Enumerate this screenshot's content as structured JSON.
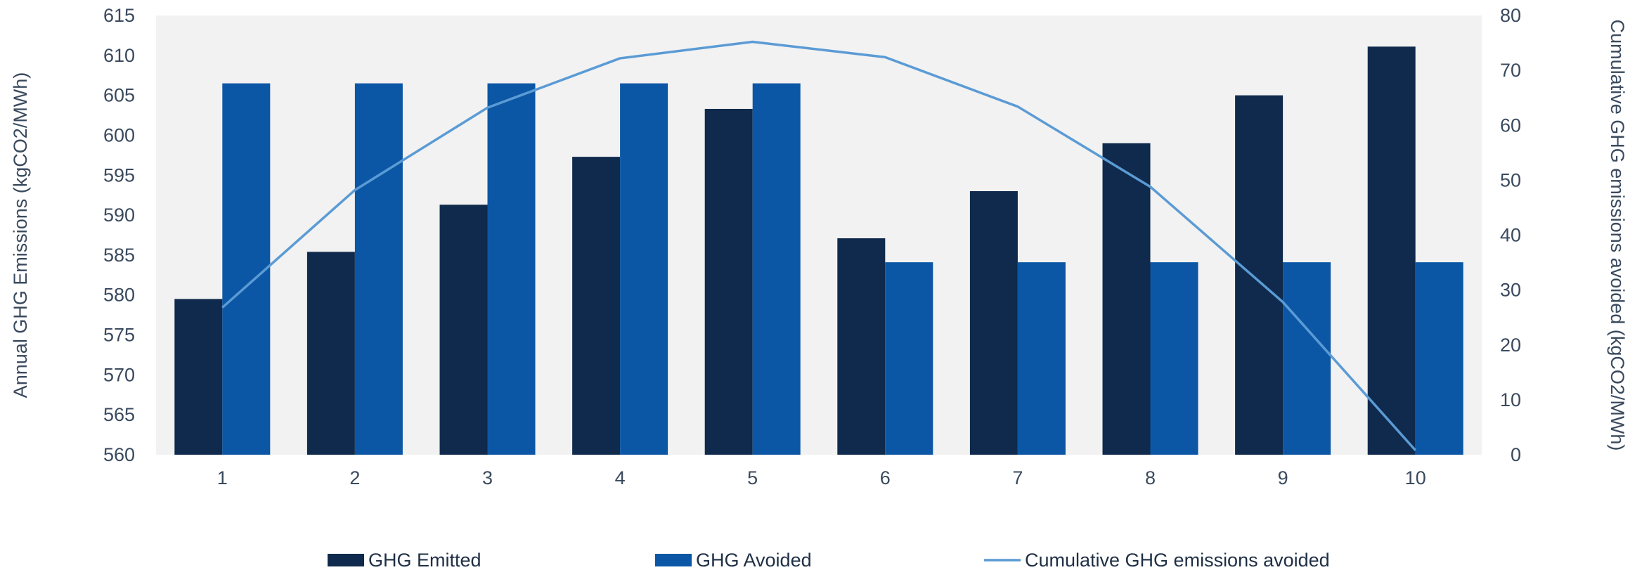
{
  "chart_data": {
    "type": "bar",
    "categories": [
      "1",
      "2",
      "3",
      "4",
      "5",
      "6",
      "7",
      "8",
      "9",
      "10"
    ],
    "series": [
      {
        "name": "GHG Emitted",
        "type": "bar",
        "axis": "left",
        "color": "#0f2a4c",
        "values": [
          579.5,
          585.4,
          591.3,
          597.3,
          603.3,
          587.1,
          593.0,
          599.0,
          605.0,
          611.1
        ]
      },
      {
        "name": "GHG Avoided",
        "type": "bar",
        "axis": "left",
        "color": "#0b57a5",
        "values": [
          606.5,
          606.5,
          606.5,
          606.5,
          606.5,
          584.1,
          584.1,
          584.1,
          584.1,
          584.1
        ]
      },
      {
        "name": "Cumulative GHG emissions avoided",
        "type": "line",
        "axis": "right",
        "color": "#5b9bd5",
        "values": [
          26.8,
          48.2,
          63.2,
          72.2,
          75.2,
          72.4,
          63.4,
          48.8,
          27.8,
          0.8
        ]
      }
    ],
    "y_left": {
      "label": "Annual GHG Emissions (kgCO2/MWh)",
      "min": 560,
      "max": 615,
      "step": 5
    },
    "y_right": {
      "label": "Cumulative GHG emissions avoided (kgCO2/MWh)",
      "min": 0,
      "max": 80,
      "step": 10
    },
    "xlabel": "",
    "grid": false,
    "plot_background": "#f2f2f2",
    "legend_position": "bottom"
  }
}
